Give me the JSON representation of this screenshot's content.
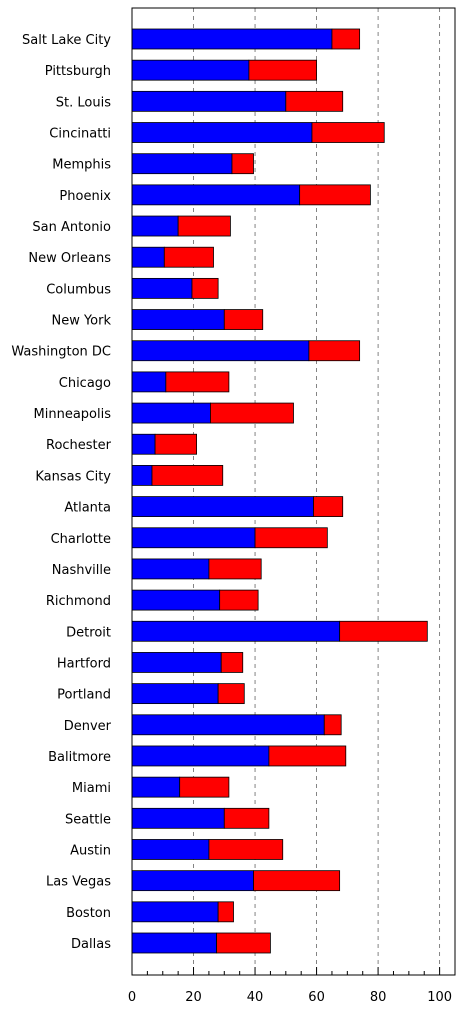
{
  "chart_data": {
    "type": "bar",
    "orientation": "horizontal",
    "stacked": true,
    "categories": [
      "Salt Lake City",
      "Pittsburgh",
      "St. Louis",
      "Cincinatti",
      "Memphis",
      "Phoenix",
      "San Antonio",
      "New Orleans",
      "Columbus",
      "New York",
      "Washington DC",
      "Chicago",
      "Minneapolis",
      "Rochester",
      "Kansas City",
      "Atlanta",
      "Charlotte",
      "Nashville",
      "Richmond",
      "Detroit",
      "Hartford",
      "Portland",
      "Denver",
      "Balitmore",
      "Miami",
      "Seattle",
      "Austin",
      "Las Vegas",
      "Boston",
      "Dallas"
    ],
    "series": [
      {
        "color": "#0000ff",
        "values": [
          65,
          38,
          50,
          58.5,
          32.5,
          54.5,
          15,
          10.5,
          19.5,
          30,
          57.5,
          11,
          25.5,
          7.5,
          6.5,
          59,
          40,
          25,
          28.5,
          67.5,
          29,
          28,
          62.5,
          44.5,
          15.5,
          30,
          25,
          39.5,
          28,
          27.5
        ]
      },
      {
        "color": "#ff0000",
        "values": [
          9,
          22,
          18.5,
          23.5,
          7,
          23,
          17,
          16,
          8.5,
          12.5,
          16.5,
          20.5,
          27,
          13.5,
          23,
          9.5,
          23.5,
          17,
          12.5,
          28.5,
          7,
          8.5,
          5.5,
          25,
          16,
          14.5,
          24,
          28,
          5,
          17.5
        ]
      }
    ],
    "xlim": [
      0,
      105
    ],
    "xticks": [
      "0",
      "20",
      "40",
      "60",
      "80",
      "100"
    ],
    "xtick_values": [
      0,
      20,
      40,
      60,
      80,
      100
    ],
    "grid": "x-dashed",
    "legend": "none"
  }
}
